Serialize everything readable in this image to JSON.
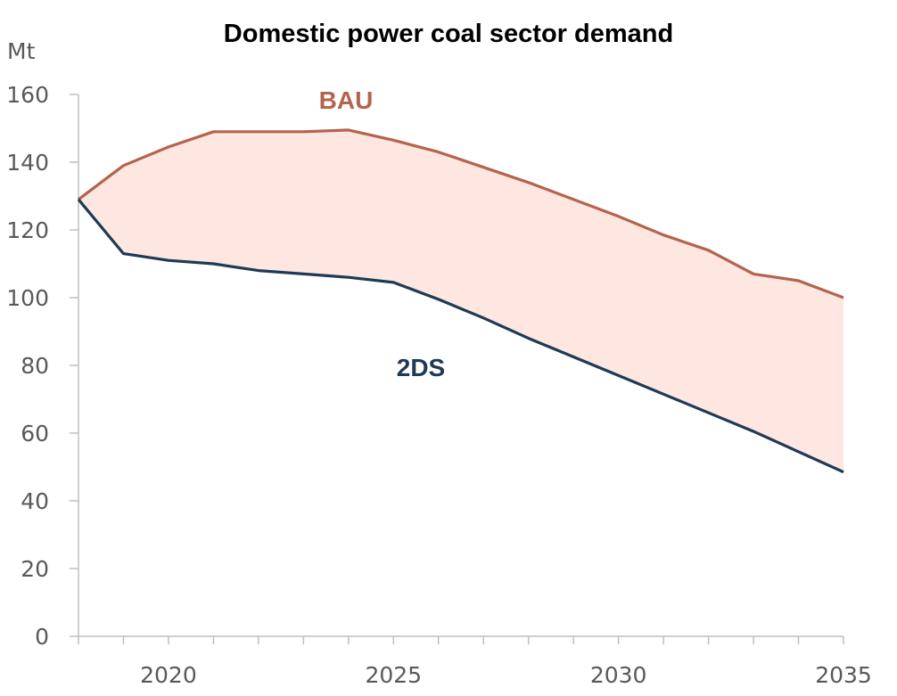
{
  "chart_data": {
    "type": "area",
    "title": "Domestic power coal sector demand",
    "ylabel": "Mt",
    "xlabel": "",
    "xlim": [
      2018,
      2035
    ],
    "ylim": [
      0,
      160
    ],
    "yticks": [
      "0",
      "20",
      "40",
      "60",
      "80",
      "100",
      "120",
      "140",
      "160"
    ],
    "xticks": [
      "2020",
      "2025",
      "2030",
      "2035"
    ],
    "x": [
      2018,
      2019,
      2020,
      2021,
      2022,
      2023,
      2024,
      2025,
      2026,
      2027,
      2028,
      2029,
      2030,
      2031,
      2032,
      2033,
      2034,
      2035
    ],
    "series": [
      {
        "name": "BAU",
        "color": "#b4644e",
        "values": [
          129,
          139,
          144.5,
          149,
          149,
          149,
          149.5,
          146.5,
          143,
          138.5,
          134,
          129,
          124,
          118.5,
          114,
          107,
          105,
          100
        ]
      },
      {
        "name": "2DS",
        "color": "#1f3a56",
        "values": [
          129,
          113,
          111,
          110,
          108,
          107,
          106,
          104.5,
          99.5,
          94,
          88,
          82.5,
          77,
          71.5,
          66,
          60.5,
          54.5,
          48.5
        ]
      }
    ],
    "fill_between": {
      "color": "#fde7e0",
      "between": [
        "BAU",
        "2DS"
      ]
    },
    "grid": false,
    "legend": "inline labels"
  }
}
